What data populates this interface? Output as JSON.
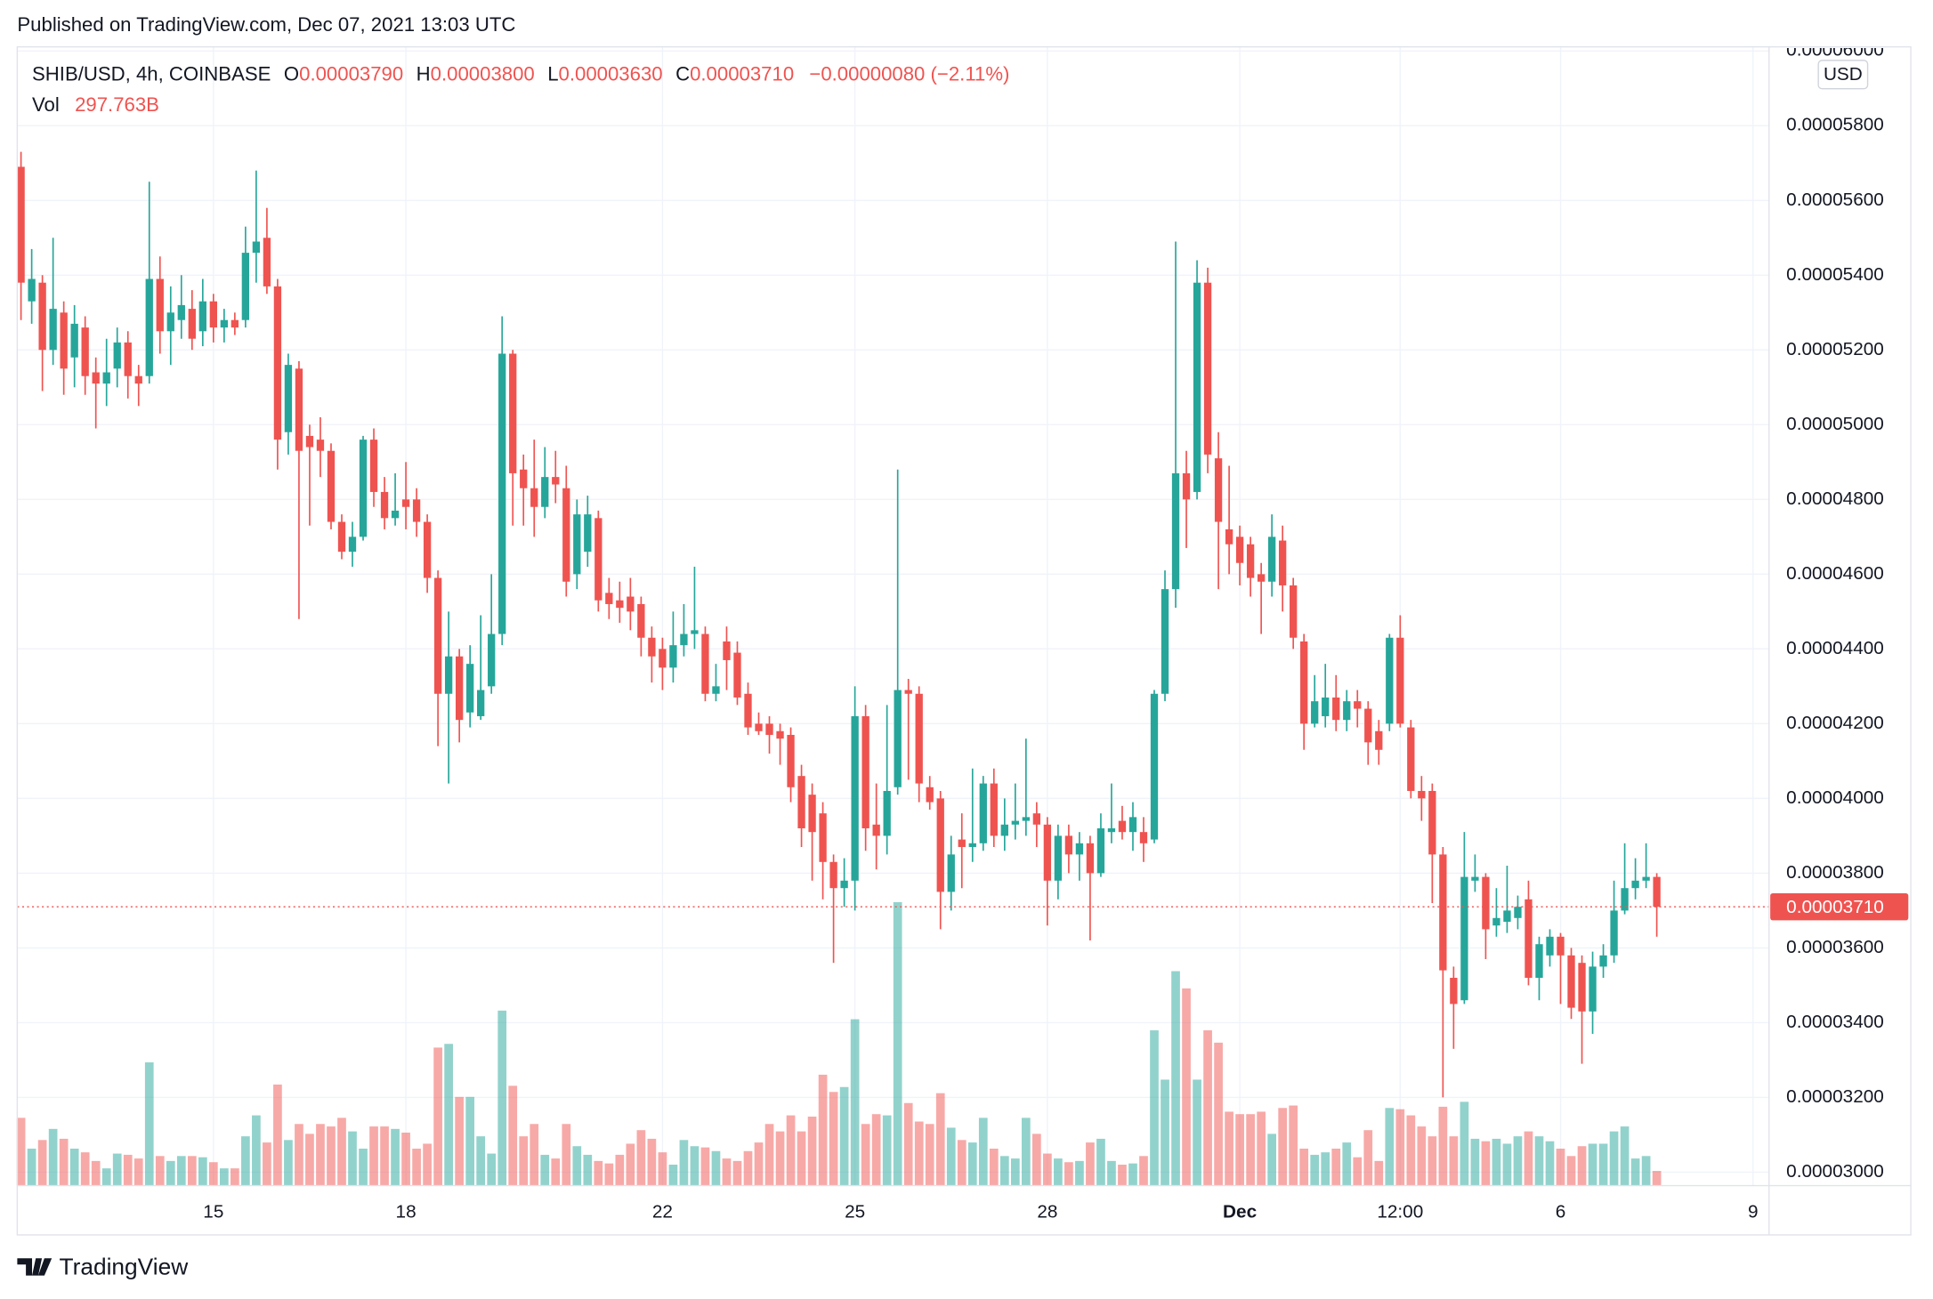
{
  "header": "Published on TradingView.com, Dec 07, 2021 13:03 UTC",
  "footer": "TradingView",
  "chart_data": {
    "type": "candlestick",
    "legend": {
      "symbol": "SHIB/USD, 4h, COINBASE",
      "open_label": "O",
      "open": "0.00003790",
      "high_label": "H",
      "high": "0.00003800",
      "low_label": "L",
      "low": "0.00003630",
      "close_label": "C",
      "close": "0.00003710",
      "change": "−0.00000080 (−2.11%)",
      "volume_label": "Vol",
      "volume": "297.763B"
    },
    "currency": "USD",
    "last_price_label": "0.00003710",
    "up_color": "#26a69a",
    "down_color": "#ef5350",
    "grid": true,
    "xlim": [
      -0.35,
      163.5
    ],
    "xticks": [
      {
        "value": 18,
        "label": "15"
      },
      {
        "value": 36,
        "label": "18"
      },
      {
        "value": 60,
        "label": "22"
      },
      {
        "value": 78,
        "label": "25"
      },
      {
        "value": 96,
        "label": "28"
      },
      {
        "value": 114,
        "label": "Dec"
      },
      {
        "value": 129,
        "label": "12:00"
      },
      {
        "value": 144,
        "label": "6"
      },
      {
        "value": 162,
        "label": "9"
      }
    ],
    "ylim": [
      2.964e-05,
      6.011e-05
    ],
    "yticks": [
      {
        "value": 3e-05,
        "label": "0.00003000"
      },
      {
        "value": 3.2e-05,
        "label": "0.00003200"
      },
      {
        "value": 3.4e-05,
        "label": "0.00003400"
      },
      {
        "value": 3.6e-05,
        "label": "0.00003600"
      },
      {
        "value": 3.8e-05,
        "label": "0.00003800"
      },
      {
        "value": 4e-05,
        "label": "0.00004000"
      },
      {
        "value": 4.2e-05,
        "label": "0.00004200"
      },
      {
        "value": 4.4e-05,
        "label": "0.00004400"
      },
      {
        "value": 4.6e-05,
        "label": "0.00004600"
      },
      {
        "value": 4.8e-05,
        "label": "0.00004800"
      },
      {
        "value": 5e-05,
        "label": "0.00005000"
      },
      {
        "value": 5.2e-05,
        "label": "0.00005200"
      },
      {
        "value": 5.4e-05,
        "label": "0.00005400"
      },
      {
        "value": 5.6e-05,
        "label": "0.00005600"
      },
      {
        "value": 5.8e-05,
        "label": "0.00005800"
      },
      {
        "value": 6e-05,
        "label": "0.00006000"
      }
    ],
    "candles": [
      [
        5.69e-05,
        5.73e-05,
        5.28e-05,
        5.38e-05
      ],
      [
        5.33e-05,
        5.47e-05,
        5.27e-05,
        5.39e-05
      ],
      [
        5.38e-05,
        5.4e-05,
        5.09e-05,
        5.2e-05
      ],
      [
        5.2e-05,
        5.5e-05,
        5.16e-05,
        5.31e-05
      ],
      [
        5.3e-05,
        5.33e-05,
        5.08e-05,
        5.15e-05
      ],
      [
        5.18e-05,
        5.32e-05,
        5.1e-05,
        5.27e-05
      ],
      [
        5.26e-05,
        5.29e-05,
        5.08e-05,
        5.13e-05
      ],
      [
        5.14e-05,
        5.18e-05,
        4.99e-05,
        5.11e-05
      ],
      [
        5.11e-05,
        5.23e-05,
        5.05e-05,
        5.14e-05
      ],
      [
        5.15e-05,
        5.26e-05,
        5.1e-05,
        5.22e-05
      ],
      [
        5.22e-05,
        5.25e-05,
        5.07e-05,
        5.13e-05
      ],
      [
        5.13e-05,
        5.16e-05,
        5.05e-05,
        5.11e-05
      ],
      [
        5.13e-05,
        5.65e-05,
        5.11e-05,
        5.39e-05
      ],
      [
        5.39e-05,
        5.45e-05,
        5.19e-05,
        5.25e-05
      ],
      [
        5.25e-05,
        5.37e-05,
        5.16e-05,
        5.3e-05
      ],
      [
        5.28e-05,
        5.4e-05,
        5.23e-05,
        5.32e-05
      ],
      [
        5.31e-05,
        5.36e-05,
        5.2e-05,
        5.23e-05
      ],
      [
        5.25e-05,
        5.39e-05,
        5.21e-05,
        5.33e-05
      ],
      [
        5.33e-05,
        5.35e-05,
        5.22e-05,
        5.26e-05
      ],
      [
        5.26e-05,
        5.31e-05,
        5.22e-05,
        5.28e-05
      ],
      [
        5.28e-05,
        5.3e-05,
        5.24e-05,
        5.26e-05
      ],
      [
        5.28e-05,
        5.53e-05,
        5.26e-05,
        5.46e-05
      ],
      [
        5.46e-05,
        5.68e-05,
        5.38e-05,
        5.49e-05
      ],
      [
        5.5e-05,
        5.58e-05,
        5.35e-05,
        5.37e-05
      ],
      [
        5.37e-05,
        5.39e-05,
        4.88e-05,
        4.96e-05
      ],
      [
        4.98e-05,
        5.19e-05,
        4.92e-05,
        5.16e-05
      ],
      [
        5.15e-05,
        5.17e-05,
        4.48e-05,
        4.93e-05
      ],
      [
        4.97e-05,
        5e-05,
        4.73e-05,
        4.94e-05
      ],
      [
        4.96e-05,
        5.02e-05,
        4.86e-05,
        4.93e-05
      ],
      [
        4.93e-05,
        4.95e-05,
        4.72e-05,
        4.74e-05
      ],
      [
        4.74e-05,
        4.76e-05,
        4.64e-05,
        4.66e-05
      ],
      [
        4.66e-05,
        4.74e-05,
        4.62e-05,
        4.7e-05
      ],
      [
        4.7e-05,
        4.97e-05,
        4.69e-05,
        4.96e-05
      ],
      [
        4.96e-05,
        4.99e-05,
        4.78e-05,
        4.82e-05
      ],
      [
        4.82e-05,
        4.86e-05,
        4.72e-05,
        4.75e-05
      ],
      [
        4.75e-05,
        4.87e-05,
        4.73e-05,
        4.77e-05
      ],
      [
        4.8e-05,
        4.9e-05,
        4.72e-05,
        4.78e-05
      ],
      [
        4.8e-05,
        4.83e-05,
        4.7e-05,
        4.74e-05
      ],
      [
        4.74e-05,
        4.76e-05,
        4.55e-05,
        4.59e-05
      ],
      [
        4.59e-05,
        4.61e-05,
        4.14e-05,
        4.28e-05
      ],
      [
        4.28e-05,
        4.5e-05,
        4.04e-05,
        4.38e-05
      ],
      [
        4.38e-05,
        4.4e-05,
        4.15e-05,
        4.21e-05
      ],
      [
        4.23e-05,
        4.41e-05,
        4.19e-05,
        4.36e-05
      ],
      [
        4.22e-05,
        4.49e-05,
        4.21e-05,
        4.29e-05
      ],
      [
        4.3e-05,
        4.6e-05,
        4.28e-05,
        4.44e-05
      ],
      [
        4.44e-05,
        5.29e-05,
        4.41e-05,
        5.19e-05
      ],
      [
        5.19e-05,
        5.2e-05,
        4.73e-05,
        4.87e-05
      ],
      [
        4.88e-05,
        4.92e-05,
        4.73e-05,
        4.83e-05
      ],
      [
        4.83e-05,
        4.96e-05,
        4.7e-05,
        4.78e-05
      ],
      [
        4.78e-05,
        4.94e-05,
        4.75e-05,
        4.86e-05
      ],
      [
        4.86e-05,
        4.93e-05,
        4.79e-05,
        4.84e-05
      ],
      [
        4.83e-05,
        4.89e-05,
        4.54e-05,
        4.58e-05
      ],
      [
        4.6e-05,
        4.8e-05,
        4.56e-05,
        4.76e-05
      ],
      [
        4.66e-05,
        4.81e-05,
        4.62e-05,
        4.76e-05
      ],
      [
        4.75e-05,
        4.77e-05,
        4.5e-05,
        4.53e-05
      ],
      [
        4.55e-05,
        4.59e-05,
        4.48e-05,
        4.52e-05
      ],
      [
        4.53e-05,
        4.58e-05,
        4.47e-05,
        4.51e-05
      ],
      [
        4.54e-05,
        4.59e-05,
        4.45e-05,
        4.5e-05
      ],
      [
        4.52e-05,
        4.54e-05,
        4.38e-05,
        4.43e-05
      ],
      [
        4.43e-05,
        4.46e-05,
        4.31e-05,
        4.38e-05
      ],
      [
        4.4e-05,
        4.43e-05,
        4.29e-05,
        4.35e-05
      ],
      [
        4.35e-05,
        4.5e-05,
        4.31e-05,
        4.41e-05
      ],
      [
        4.41e-05,
        4.52e-05,
        4.38e-05,
        4.44e-05
      ],
      [
        4.44e-05,
        4.62e-05,
        4.4e-05,
        4.45e-05
      ],
      [
        4.44e-05,
        4.46e-05,
        4.26e-05,
        4.28e-05
      ],
      [
        4.28e-05,
        4.36e-05,
        4.26e-05,
        4.3e-05
      ],
      [
        4.42e-05,
        4.46e-05,
        4.29e-05,
        4.37e-05
      ],
      [
        4.39e-05,
        4.42e-05,
        4.25e-05,
        4.27e-05
      ],
      [
        4.28e-05,
        4.31e-05,
        4.17e-05,
        4.19e-05
      ],
      [
        4.2e-05,
        4.23e-05,
        4.17e-05,
        4.18e-05
      ],
      [
        4.2e-05,
        4.22e-05,
        4.12e-05,
        4.17e-05
      ],
      [
        4.18e-05,
        4.2e-05,
        4.09e-05,
        4.16e-05
      ],
      [
        4.17e-05,
        4.19e-05,
        3.99e-05,
        4.03e-05
      ],
      [
        4.06e-05,
        4.09e-05,
        3.87e-05,
        3.92e-05
      ],
      [
        4.01e-05,
        4.04e-05,
        3.78e-05,
        3.91e-05
      ],
      [
        3.96e-05,
        3.99e-05,
        3.73e-05,
        3.83e-05
      ],
      [
        3.83e-05,
        3.85e-05,
        3.56e-05,
        3.76e-05
      ],
      [
        3.76e-05,
        3.84e-05,
        3.71e-05,
        3.78e-05
      ],
      [
        3.78e-05,
        4.3e-05,
        3.7e-05,
        4.22e-05
      ],
      [
        4.22e-05,
        4.25e-05,
        3.86e-05,
        3.92e-05
      ],
      [
        3.93e-05,
        4.04e-05,
        3.81e-05,
        3.9e-05
      ],
      [
        3.9e-05,
        4.25e-05,
        3.85e-05,
        4.02e-05
      ],
      [
        4.03e-05,
        4.88e-05,
        4.01e-05,
        4.29e-05
      ],
      [
        4.29e-05,
        4.32e-05,
        4.05e-05,
        4.28e-05
      ],
      [
        4.28e-05,
        4.3e-05,
        3.99e-05,
        4.04e-05
      ],
      [
        4.03e-05,
        4.06e-05,
        3.97e-05,
        3.99e-05
      ],
      [
        4e-05,
        4.02e-05,
        3.65e-05,
        3.75e-05
      ],
      [
        3.75e-05,
        3.9e-05,
        3.7e-05,
        3.85e-05
      ],
      [
        3.89e-05,
        3.96e-05,
        3.76e-05,
        3.87e-05
      ],
      [
        3.87e-05,
        4.08e-05,
        3.83e-05,
        3.88e-05
      ],
      [
        3.88e-05,
        4.06e-05,
        3.86e-05,
        4.04e-05
      ],
      [
        4.04e-05,
        4.08e-05,
        3.87e-05,
        3.9e-05
      ],
      [
        3.9e-05,
        4e-05,
        3.86e-05,
        3.93e-05
      ],
      [
        3.93e-05,
        4.04e-05,
        3.89e-05,
        3.94e-05
      ],
      [
        3.94e-05,
        4.16e-05,
        3.9e-05,
        3.95e-05
      ],
      [
        3.96e-05,
        3.99e-05,
        3.87e-05,
        3.93e-05
      ],
      [
        3.93e-05,
        3.95e-05,
        3.66e-05,
        3.78e-05
      ],
      [
        3.78e-05,
        3.93e-05,
        3.73e-05,
        3.9e-05
      ],
      [
        3.9e-05,
        3.93e-05,
        3.8e-05,
        3.85e-05
      ],
      [
        3.85e-05,
        3.91e-05,
        3.78e-05,
        3.88e-05
      ],
      [
        3.88e-05,
        3.9e-05,
        3.62e-05,
        3.8e-05
      ],
      [
        3.8e-05,
        3.96e-05,
        3.79e-05,
        3.92e-05
      ],
      [
        3.91e-05,
        4.04e-05,
        3.88e-05,
        3.92e-05
      ],
      [
        3.94e-05,
        3.98e-05,
        3.89e-05,
        3.91e-05
      ],
      [
        3.91e-05,
        3.99e-05,
        3.86e-05,
        3.95e-05
      ],
      [
        3.91e-05,
        3.95e-05,
        3.83e-05,
        3.88e-05
      ],
      [
        3.89e-05,
        4.29e-05,
        3.88e-05,
        4.28e-05
      ],
      [
        4.28e-05,
        4.61e-05,
        4.26e-05,
        4.56e-05
      ],
      [
        4.56e-05,
        5.49e-05,
        4.51e-05,
        4.87e-05
      ],
      [
        4.87e-05,
        4.93e-05,
        4.67e-05,
        4.8e-05
      ],
      [
        4.82e-05,
        5.44e-05,
        4.8e-05,
        5.38e-05
      ],
      [
        5.38e-05,
        5.42e-05,
        4.87e-05,
        4.92e-05
      ],
      [
        4.91e-05,
        4.98e-05,
        4.56e-05,
        4.74e-05
      ],
      [
        4.72e-05,
        4.89e-05,
        4.6e-05,
        4.68e-05
      ],
      [
        4.7e-05,
        4.73e-05,
        4.57e-05,
        4.63e-05
      ],
      [
        4.68e-05,
        4.7e-05,
        4.54e-05,
        4.59e-05
      ],
      [
        4.6e-05,
        4.63e-05,
        4.44e-05,
        4.58e-05
      ],
      [
        4.58e-05,
        4.76e-05,
        4.54e-05,
        4.7e-05
      ],
      [
        4.69e-05,
        4.73e-05,
        4.5e-05,
        4.57e-05
      ],
      [
        4.57e-05,
        4.59e-05,
        4.4e-05,
        4.43e-05
      ],
      [
        4.42e-05,
        4.44e-05,
        4.13e-05,
        4.2e-05
      ],
      [
        4.2e-05,
        4.33e-05,
        4.19e-05,
        4.26e-05
      ],
      [
        4.22e-05,
        4.36e-05,
        4.19e-05,
        4.27e-05
      ],
      [
        4.27e-05,
        4.33e-05,
        4.18e-05,
        4.21e-05
      ],
      [
        4.21e-05,
        4.29e-05,
        4.18e-05,
        4.26e-05
      ],
      [
        4.26e-05,
        4.29e-05,
        4.19e-05,
        4.24e-05
      ],
      [
        4.24e-05,
        4.26e-05,
        4.09e-05,
        4.15e-05
      ],
      [
        4.18e-05,
        4.21e-05,
        4.09e-05,
        4.13e-05
      ],
      [
        4.2e-05,
        4.44e-05,
        4.18e-05,
        4.43e-05
      ],
      [
        4.43e-05,
        4.49e-05,
        4.19e-05,
        4.2e-05
      ],
      [
        4.19e-05,
        4.21e-05,
        4e-05,
        4.02e-05
      ],
      [
        4.02e-05,
        4.06e-05,
        3.94e-05,
        4e-05
      ],
      [
        4.02e-05,
        4.04e-05,
        3.72e-05,
        3.85e-05
      ],
      [
        3.85e-05,
        3.87e-05,
        3.2e-05,
        3.54e-05
      ],
      [
        3.52e-05,
        3.55e-05,
        3.33e-05,
        3.45e-05
      ],
      [
        3.46e-05,
        3.91e-05,
        3.45e-05,
        3.79e-05
      ],
      [
        3.78e-05,
        3.85e-05,
        3.75e-05,
        3.79e-05
      ],
      [
        3.79e-05,
        3.8e-05,
        3.57e-05,
        3.65e-05
      ],
      [
        3.66e-05,
        3.76e-05,
        3.63e-05,
        3.68e-05
      ],
      [
        3.67e-05,
        3.82e-05,
        3.64e-05,
        3.7e-05
      ],
      [
        3.68e-05,
        3.74e-05,
        3.65e-05,
        3.71e-05
      ],
      [
        3.73e-05,
        3.78e-05,
        3.5e-05,
        3.52e-05
      ],
      [
        3.52e-05,
        3.63e-05,
        3.46e-05,
        3.61e-05
      ],
      [
        3.58e-05,
        3.65e-05,
        3.55e-05,
        3.63e-05
      ],
      [
        3.63e-05,
        3.64e-05,
        3.45e-05,
        3.58e-05
      ],
      [
        3.58e-05,
        3.6e-05,
        3.41e-05,
        3.44e-05
      ],
      [
        3.56e-05,
        3.58e-05,
        3.29e-05,
        3.43e-05
      ],
      [
        3.43e-05,
        3.59e-05,
        3.37e-05,
        3.55e-05
      ],
      [
        3.55e-05,
        3.61e-05,
        3.52e-05,
        3.58e-05
      ],
      [
        3.58e-05,
        3.78e-05,
        3.56e-05,
        3.7e-05
      ],
      [
        3.7e-05,
        3.88e-05,
        3.69e-05,
        3.76e-05
      ],
      [
        3.76e-05,
        3.84e-05,
        3.73e-05,
        3.78e-05
      ],
      [
        3.78e-05,
        3.88e-05,
        3.76e-05,
        3.79e-05
      ],
      [
        3.79e-05,
        3.8e-05,
        3.63e-05,
        3.71e-05
      ]
    ],
    "volume": [
      1375,
      750,
      925,
      1150,
      950,
      750,
      675,
      500,
      350,
      650,
      625,
      550,
      2500,
      600,
      500,
      600,
      600,
      575,
      475,
      350,
      350,
      1000,
      1425,
      875,
      2050,
      925,
      1250,
      1050,
      1250,
      1200,
      1375,
      1100,
      750,
      1200,
      1200,
      1150,
      1075,
      750,
      850,
      2800,
      2875,
      1800,
      1800,
      1000,
      650,
      3550,
      2025,
      1000,
      1250,
      625,
      550,
      1250,
      800,
      625,
      500,
      450,
      625,
      850,
      1125,
      950,
      675,
      425,
      925,
      800,
      775,
      700,
      550,
      500,
      700,
      875,
      1250,
      1100,
      1425,
      1100,
      1400,
      2250,
      1900,
      2000,
      3375,
      1250,
      1450,
      1425,
      5750,
      1675,
      1300,
      1250,
      1875,
      1175,
      925,
      875,
      1375,
      750,
      600,
      550,
      1375,
      1050,
      650,
      550,
      475,
      500,
      875,
      950,
      500,
      425,
      450,
      600,
      3150,
      2150,
      4350,
      4000,
      2150,
      3150,
      2900,
      1500,
      1450,
      1450,
      1500,
      1050,
      1575,
      1625,
      750,
      625,
      675,
      750,
      875,
      575,
      1125,
      500,
      1575,
      1550,
      1425,
      1200,
      1000,
      1600,
      1000,
      1700,
      950,
      900,
      950,
      850,
      1000,
      1100,
      1000,
      900,
      750,
      600,
      800,
      850,
      850,
      1100,
      1200,
      550,
      600,
      297.763
    ]
  }
}
